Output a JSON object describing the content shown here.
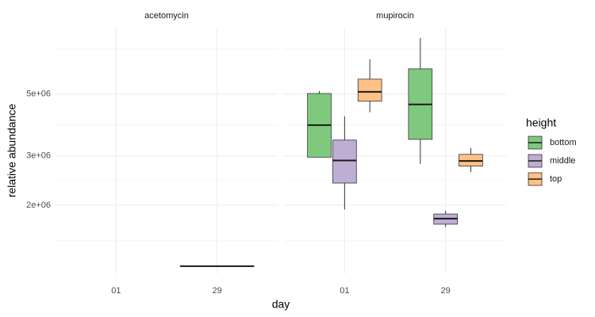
{
  "chart_data": {
    "type": "box",
    "x_label": "day",
    "y_label": "relative abundance",
    "legend_title": "height",
    "log_scale": true,
    "grid": true,
    "ylim": [
      1140000,
      8630000
    ],
    "yticks": [
      {
        "value": 2000000,
        "label": "2e+06"
      },
      {
        "value": 3000000,
        "label": "3e+06"
      },
      {
        "value": 5000000,
        "label": "5e+06"
      }
    ],
    "series": [
      {
        "name": "bottom",
        "color": "#7fc97f"
      },
      {
        "name": "middle",
        "color": "#beaed4"
      },
      {
        "name": "top",
        "color": "#fdc086"
      }
    ],
    "facets": [
      {
        "title": "acetomycin",
        "categories": [
          "01",
          "29"
        ],
        "series": [
          {
            "name": "bottom",
            "values": [
              null,
              {
                "min": 1210000,
                "q1": 1210000,
                "median": 1210000,
                "q3": 1210000,
                "max": 1210000
              }
            ]
          }
        ]
      },
      {
        "title": "mupirocin",
        "categories": [
          "01",
          "29"
        ],
        "series": [
          {
            "name": "bottom",
            "values": [
              {
                "min": 2970000,
                "q1": 2970000,
                "median": 3870000,
                "q3": 5020000,
                "max": 5120000
              },
              {
                "min": 2810000,
                "q1": 3440000,
                "median": 4590000,
                "q3": 6150000,
                "max": 7930000
              }
            ]
          },
          {
            "name": "middle",
            "values": [
              {
                "min": 1930000,
                "q1": 2400000,
                "median": 2890000,
                "q3": 3420000,
                "max": 4160000
              },
              {
                "min": 1670000,
                "q1": 1710000,
                "median": 1790000,
                "q3": 1860000,
                "max": 1910000
              }
            ]
          },
          {
            "name": "top",
            "values": [
              {
                "min": 4300000,
                "q1": 4710000,
                "median": 5090000,
                "q3": 5650000,
                "max": 6650000
              },
              {
                "min": 2630000,
                "q1": 2760000,
                "median": 2880000,
                "q3": 3040000,
                "max": 3200000
              }
            ]
          }
        ]
      }
    ]
  }
}
